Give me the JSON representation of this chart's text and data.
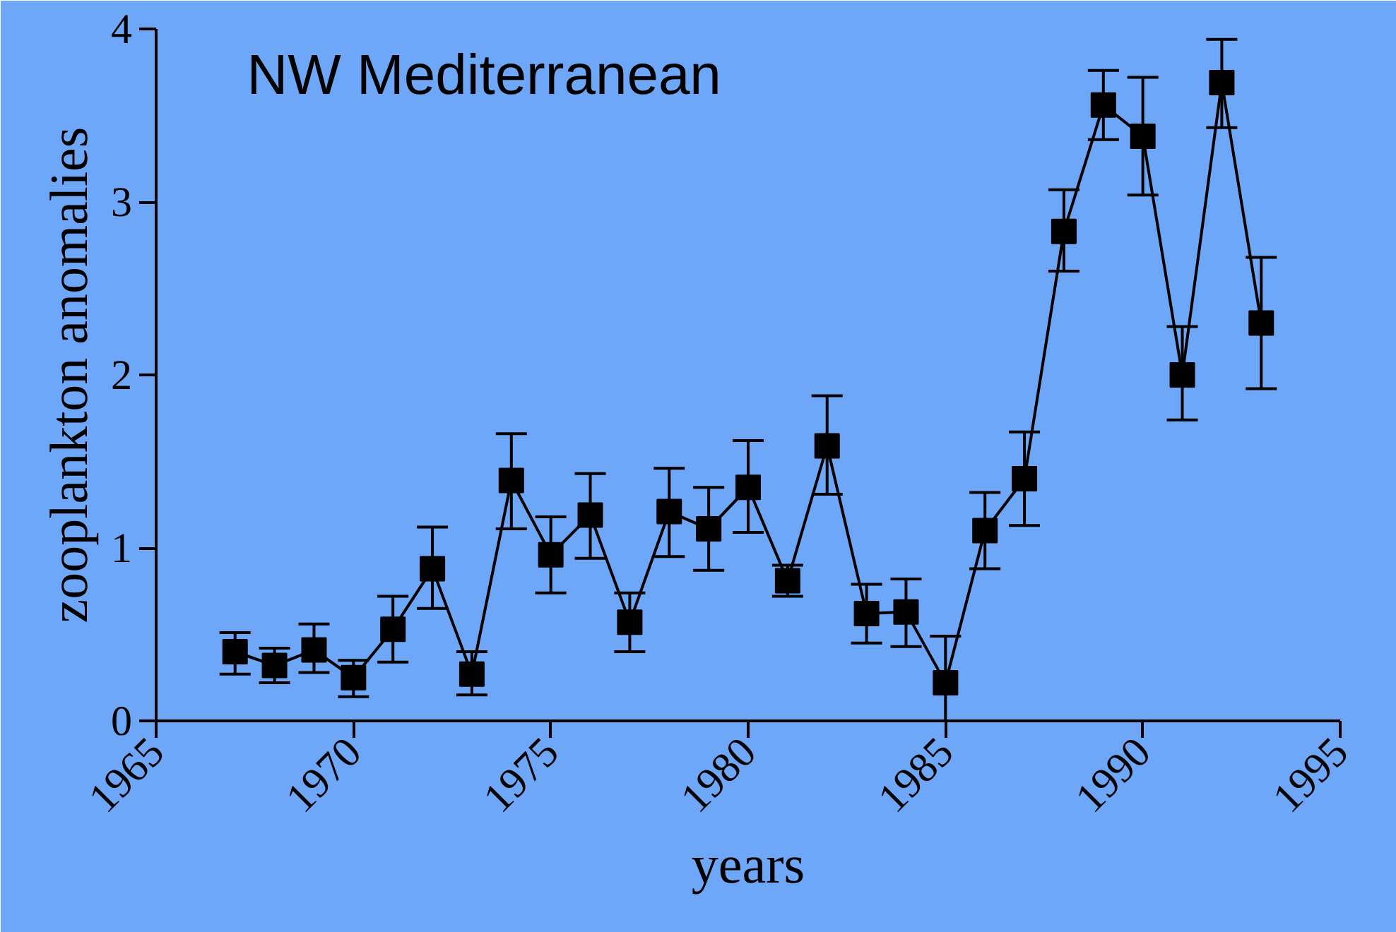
{
  "chart_data": {
    "type": "line",
    "title": "NW Mediterranean",
    "xlabel": "years",
    "ylabel": "zooplankton anomalies",
    "x": [
      1967,
      1968,
      1969,
      1970,
      1971,
      1972,
      1973,
      1974,
      1975,
      1976,
      1977,
      1978,
      1979,
      1980,
      1981,
      1982,
      1983,
      1984,
      1985,
      1986,
      1987,
      1988,
      1989,
      1990,
      1991,
      1992,
      1993
    ],
    "series": [
      {
        "color": "#000000",
        "values": [
          0.4,
          0.32,
          0.41,
          0.25,
          0.53,
          0.88,
          0.27,
          1.39,
          0.96,
          1.19,
          0.57,
          1.21,
          1.11,
          1.35,
          0.81,
          1.59,
          0.62,
          0.63,
          0.22,
          1.1,
          1.4,
          2.83,
          3.56,
          3.38,
          2.0,
          3.69,
          2.3
        ],
        "errors": [
          [
            0.27,
            0.51
          ],
          [
            0.22,
            0.42
          ],
          [
            0.28,
            0.56
          ],
          [
            0.14,
            0.35
          ],
          [
            0.34,
            0.72
          ],
          [
            0.65,
            1.12
          ],
          [
            0.15,
            0.4
          ],
          [
            1.11,
            1.66
          ],
          [
            0.74,
            1.18
          ],
          [
            0.94,
            1.43
          ],
          [
            0.4,
            0.74
          ],
          [
            0.95,
            1.46
          ],
          [
            0.87,
            1.35
          ],
          [
            1.09,
            1.62
          ],
          [
            0.72,
            0.9
          ],
          [
            1.31,
            1.88
          ],
          [
            0.45,
            0.79
          ],
          [
            0.43,
            0.82
          ],
          [
            0.0,
            0.49
          ],
          [
            0.88,
            1.32
          ],
          [
            1.13,
            1.67
          ],
          [
            2.6,
            3.07
          ],
          [
            3.36,
            3.76
          ],
          [
            3.04,
            3.72
          ],
          [
            1.74,
            2.28
          ],
          [
            3.43,
            3.94
          ],
          [
            1.92,
            2.68
          ]
        ]
      }
    ],
    "xlim": [
      1965,
      1995
    ],
    "xticks": [
      1965,
      1970,
      1975,
      1980,
      1985,
      1990,
      1995
    ],
    "ylim": [
      0,
      4
    ],
    "yticks": [
      0,
      1,
      2,
      3,
      4
    ],
    "marker": "square",
    "line_style": "solid",
    "grid": false
  }
}
